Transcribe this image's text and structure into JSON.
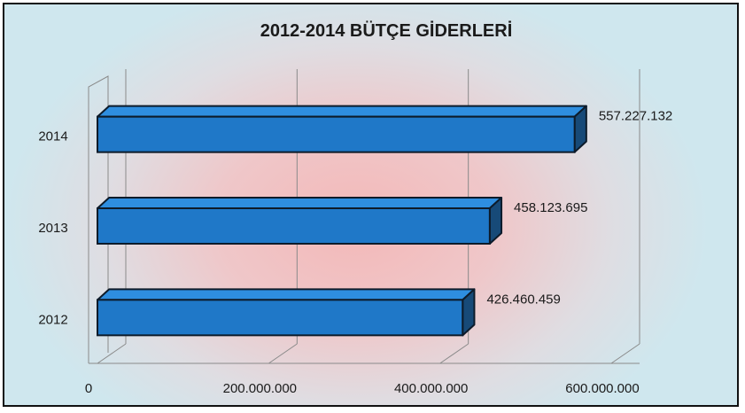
{
  "chart_data": {
    "type": "bar",
    "orientation": "horizontal",
    "title": "2012-2014 BÜTÇE GİDERLERİ",
    "categories": [
      "2012",
      "2013",
      "2014"
    ],
    "values": [
      426460459,
      458123695,
      557227132
    ],
    "data_labels": [
      "426.460.459",
      "458.123.695",
      "557.227.132"
    ],
    "xlim": [
      0,
      600000000
    ],
    "x_ticks": [
      0,
      200000000,
      400000000,
      600000000
    ],
    "x_tick_labels": [
      "0",
      "200.000.000",
      "400.000.000",
      "600.000.000"
    ],
    "grid": true,
    "style": "3d",
    "bar_color": "#1f78c8",
    "legend": "none"
  }
}
